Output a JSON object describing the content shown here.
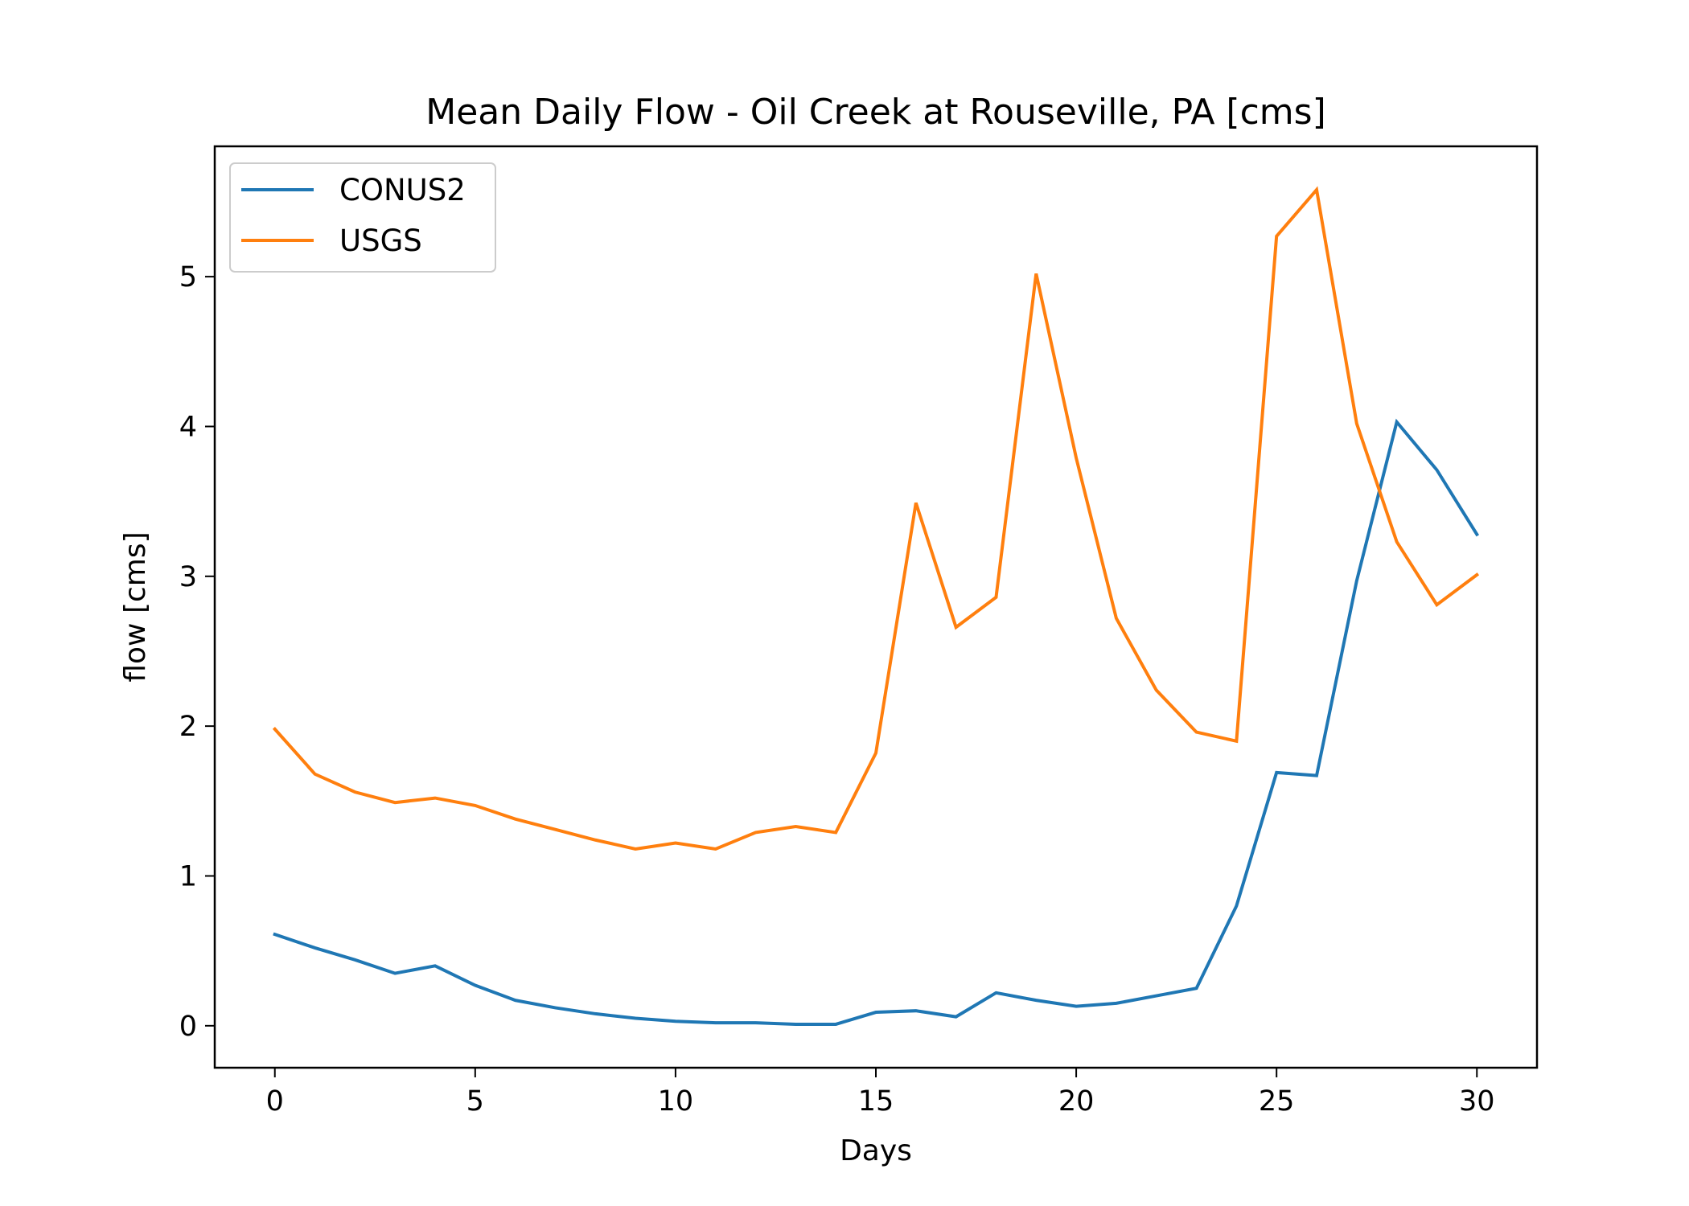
{
  "chart_data": {
    "type": "line",
    "title": "Mean Daily Flow - Oil Creek at Rouseville, PA [cms]",
    "xlabel": "Days",
    "ylabel": "flow [cms]",
    "xlim": [
      -1.5,
      31.5
    ],
    "ylim": [
      -0.28,
      5.87
    ],
    "xticks": [
      0,
      5,
      10,
      15,
      20,
      25,
      30
    ],
    "yticks": [
      0,
      1,
      2,
      3,
      4,
      5
    ],
    "grid": false,
    "legend_position": "upper-left",
    "x": [
      0,
      1,
      2,
      3,
      4,
      5,
      6,
      7,
      8,
      9,
      10,
      11,
      12,
      13,
      14,
      15,
      16,
      17,
      18,
      19,
      20,
      21,
      22,
      23,
      24,
      25,
      26,
      27,
      28,
      29,
      30
    ],
    "series": [
      {
        "name": "CONUS2",
        "color": "#1f77b4",
        "values": [
          0.61,
          0.52,
          0.44,
          0.35,
          0.4,
          0.27,
          0.17,
          0.12,
          0.08,
          0.05,
          0.03,
          0.02,
          0.02,
          0.01,
          0.01,
          0.09,
          0.1,
          0.06,
          0.22,
          0.17,
          0.13,
          0.15,
          0.2,
          0.25,
          0.8,
          1.69,
          1.67,
          2.97,
          4.03,
          3.71,
          3.28
        ]
      },
      {
        "name": "USGS",
        "color": "#ff7f0e",
        "values": [
          1.98,
          1.68,
          1.56,
          1.49,
          1.52,
          1.47,
          1.38,
          1.31,
          1.24,
          1.18,
          1.22,
          1.18,
          1.29,
          1.33,
          1.29,
          1.82,
          3.49,
          2.66,
          2.86,
          5.02,
          3.79,
          2.72,
          2.24,
          1.96,
          1.9,
          5.27,
          5.58,
          4.02,
          3.23,
          2.81,
          3.01
        ]
      }
    ]
  }
}
